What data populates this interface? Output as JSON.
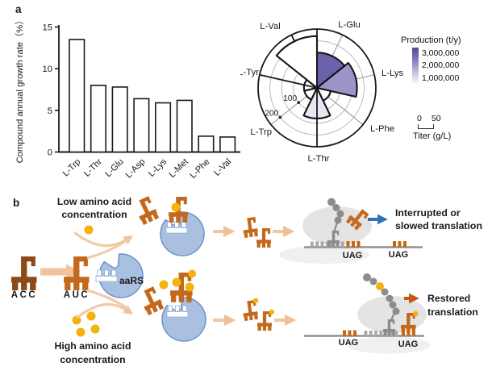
{
  "figure": {
    "panel_a_label": "a",
    "panel_b_label": "b"
  },
  "chart_data": [
    {
      "type": "bar",
      "title": "",
      "xlabel": "",
      "ylabel": "Compound annual growth rate（%）",
      "categories": [
        "L-Trp",
        "L-Thr",
        "L-Glu",
        "L-Asp",
        "L-Lys",
        "L-Met",
        "L-Phe",
        "L-Val"
      ],
      "values": [
        13.5,
        8.0,
        7.8,
        6.4,
        5.9,
        6.2,
        1.9,
        1.8
      ],
      "yticks": [
        0,
        5,
        10,
        15
      ],
      "ylim": [
        0,
        15
      ],
      "bar_fill": "#ffffff",
      "bar_stroke": "#1a1a1a",
      "grid": false
    },
    {
      "type": "rose",
      "title": "",
      "categories": [
        "L-Glu",
        "L-Lys",
        "L-Phe",
        "L-Thr",
        "L-Trp",
        "L-Tyr",
        "L-Val"
      ],
      "titer_g_l": [
        150,
        170,
        60,
        130,
        55,
        55,
        220
      ],
      "wedge_colors": [
        "#6a63ac",
        "#9a94c8",
        "#ffffff",
        "#e9e6f4",
        "#ffffff",
        "#ffffff",
        "#ffffff"
      ],
      "radial_axis": {
        "rings_g_l": [
          50,
          100,
          150,
          200,
          250
        ],
        "labeled_rings": [
          "100",
          "200"
        ],
        "max": 250
      },
      "legend_title": "Production (t/y)",
      "legend_ticks": [
        "3,000,000",
        "2,000,000",
        "1,000,000"
      ],
      "legend_gradient_top": "#514b9d",
      "legend_gradient_bottom": "#ffffff",
      "scale_bar": {
        "from": "0",
        "to": "50",
        "label": "Titer (g/L)"
      }
    }
  ],
  "panel_b": {
    "low_line1": "Low amino acid",
    "low_line2": "concentration",
    "high_line1": "High amino acid",
    "high_line2": "concentration",
    "codon_before": "ACC",
    "codon_after": "AUC",
    "enzyme_label": "aaRS",
    "stop_codon": "UAG",
    "interrupted_line1": "Interrupted or",
    "interrupted_line2": "slowed translation",
    "restored_line1": "Restored",
    "restored_line2": "translation",
    "colors": {
      "trna_dark": "#8c4a18",
      "trna_orange": "#c2691d",
      "amino_acid_yellow": "#f3b30c",
      "aars_fill": "#a9c0e1",
      "aars_stroke": "#7097cd",
      "flow_arrow_peach": "#f0c29e",
      "ribosome_gray": "#e4e4e4",
      "peptide_gray": "#8c8c8c",
      "interrupted_blue": "#2e74b5",
      "restored_orange": "#c45a10"
    }
  }
}
